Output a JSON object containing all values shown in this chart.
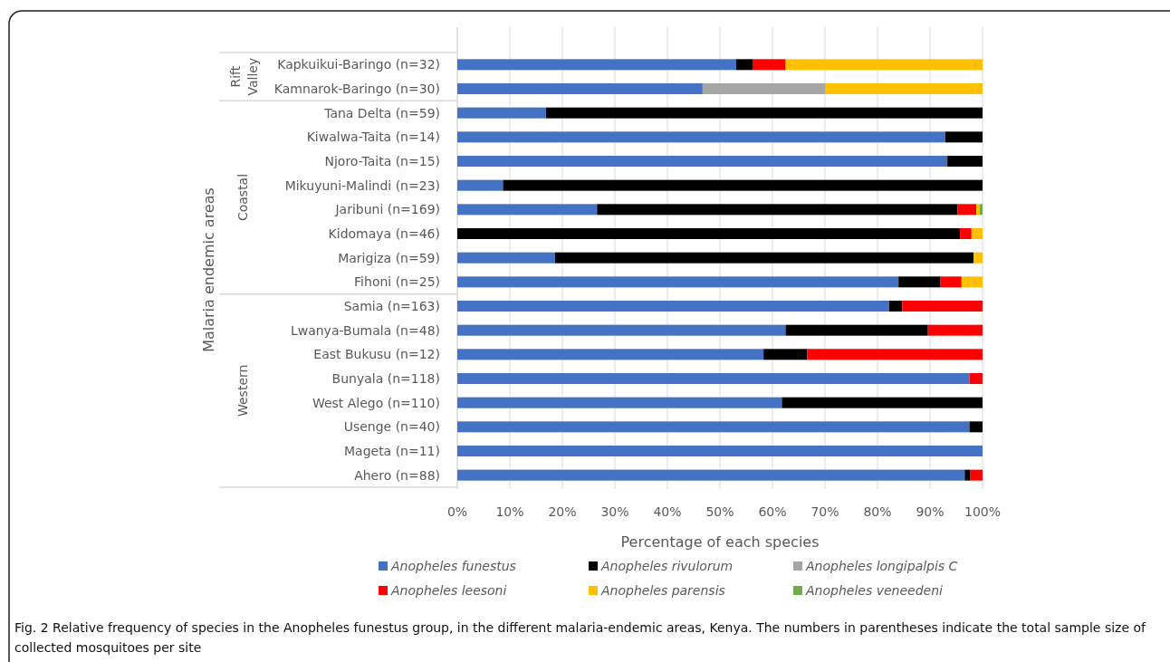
{
  "chart_data": {
    "type": "bar",
    "orientation": "horizontal",
    "stacked": true,
    "xlabel": "Percentage of each species",
    "ylabel": "Malaria endemic areas",
    "categories": [
      "Kapkuikui-Baringo (n=32)",
      "Kamnarok-Baringo (n=30)",
      "Tana Delta (n=59)",
      "Kiwalwa-Taita (n=14)",
      "Njoro-Taita (n=15)",
      "Mikuyuni-Malindi (n=23)",
      "Jaribuni (n=169)",
      "Kidomaya (n=46)",
      "Marigiza (n=59)",
      "Fihoni (n=25)",
      "Samia (n=163)",
      "Lwanya-Bumala (n=48)",
      "East Bukusu (n=12)",
      "Bunyala (n=118)",
      "West Alego (n=110)",
      "Usenge (n=40)",
      "Mageta (n=11)",
      "Ahero (n=88)"
    ],
    "series": [
      {
        "name": "Anopheles funestus",
        "color": "#4472c4",
        "values": [
          53.1,
          46.7,
          16.9,
          92.9,
          93.3,
          8.7,
          26.6,
          0,
          18.6,
          84,
          82.2,
          62.5,
          58.3,
          97.5,
          61.8,
          97.5,
          100,
          96.6
        ]
      },
      {
        "name": "Anopheles rivulorum",
        "color": "#000000",
        "values": [
          3.1,
          0,
          83.1,
          7.1,
          6.7,
          91.3,
          68.6,
          95.7,
          79.7,
          8,
          2.5,
          27.1,
          8.3,
          0,
          38.2,
          2.5,
          0,
          1.1
        ]
      },
      {
        "name": "Anopheles longipalpis C",
        "color": "#a5a5a5",
        "values": [
          0,
          23.3,
          0,
          0,
          0,
          0,
          0,
          0,
          0,
          0,
          0,
          0,
          0,
          0,
          0,
          0,
          0,
          0
        ]
      },
      {
        "name": "Anopheles leesoni",
        "color": "#ff0000",
        "values": [
          6.3,
          0,
          0,
          0,
          0,
          0,
          3.6,
          2.2,
          0,
          4,
          15.3,
          10.4,
          33.4,
          2.5,
          0,
          0,
          0,
          2.3
        ]
      },
      {
        "name": "Anopheles parensis",
        "color": "#ffc000",
        "values": [
          37.5,
          30,
          0,
          0,
          0,
          0,
          0.6,
          2.1,
          1.7,
          4,
          0,
          0,
          0,
          0,
          0,
          0,
          0,
          0
        ]
      },
      {
        "name": "Anopheles veneedeni",
        "color": "#70ad47",
        "values": [
          0,
          0,
          0,
          0,
          0,
          0,
          0.6,
          0,
          0,
          0,
          0,
          0,
          0,
          0,
          0,
          0,
          0,
          0
        ]
      }
    ],
    "xlim": [
      0,
      100
    ],
    "xticks": [
      {
        "value": 0,
        "label": "0%"
      },
      {
        "value": 10,
        "label": "10%"
      },
      {
        "value": 20,
        "label": "20%"
      },
      {
        "value": 30,
        "label": "30%"
      },
      {
        "value": 40,
        "label": "40%"
      },
      {
        "value": 50,
        "label": "50%"
      },
      {
        "value": 60,
        "label": "60%"
      },
      {
        "value": 70,
        "label": "70%"
      },
      {
        "value": 80,
        "label": "80%"
      },
      {
        "value": 90,
        "label": "90%"
      },
      {
        "value": 100,
        "label": "100%"
      }
    ],
    "grid": "x",
    "legend": "bottom",
    "annotations": [
      "Rift Valley",
      "Coastal",
      "Western",
      "Fig. 2 Relative frequency of species in the Anopheles funestus group, in the different malaria-endemic areas, Kenya. The numbers in parentheses indicate the total sample size of collected mosquitoes per site"
    ]
  }
}
